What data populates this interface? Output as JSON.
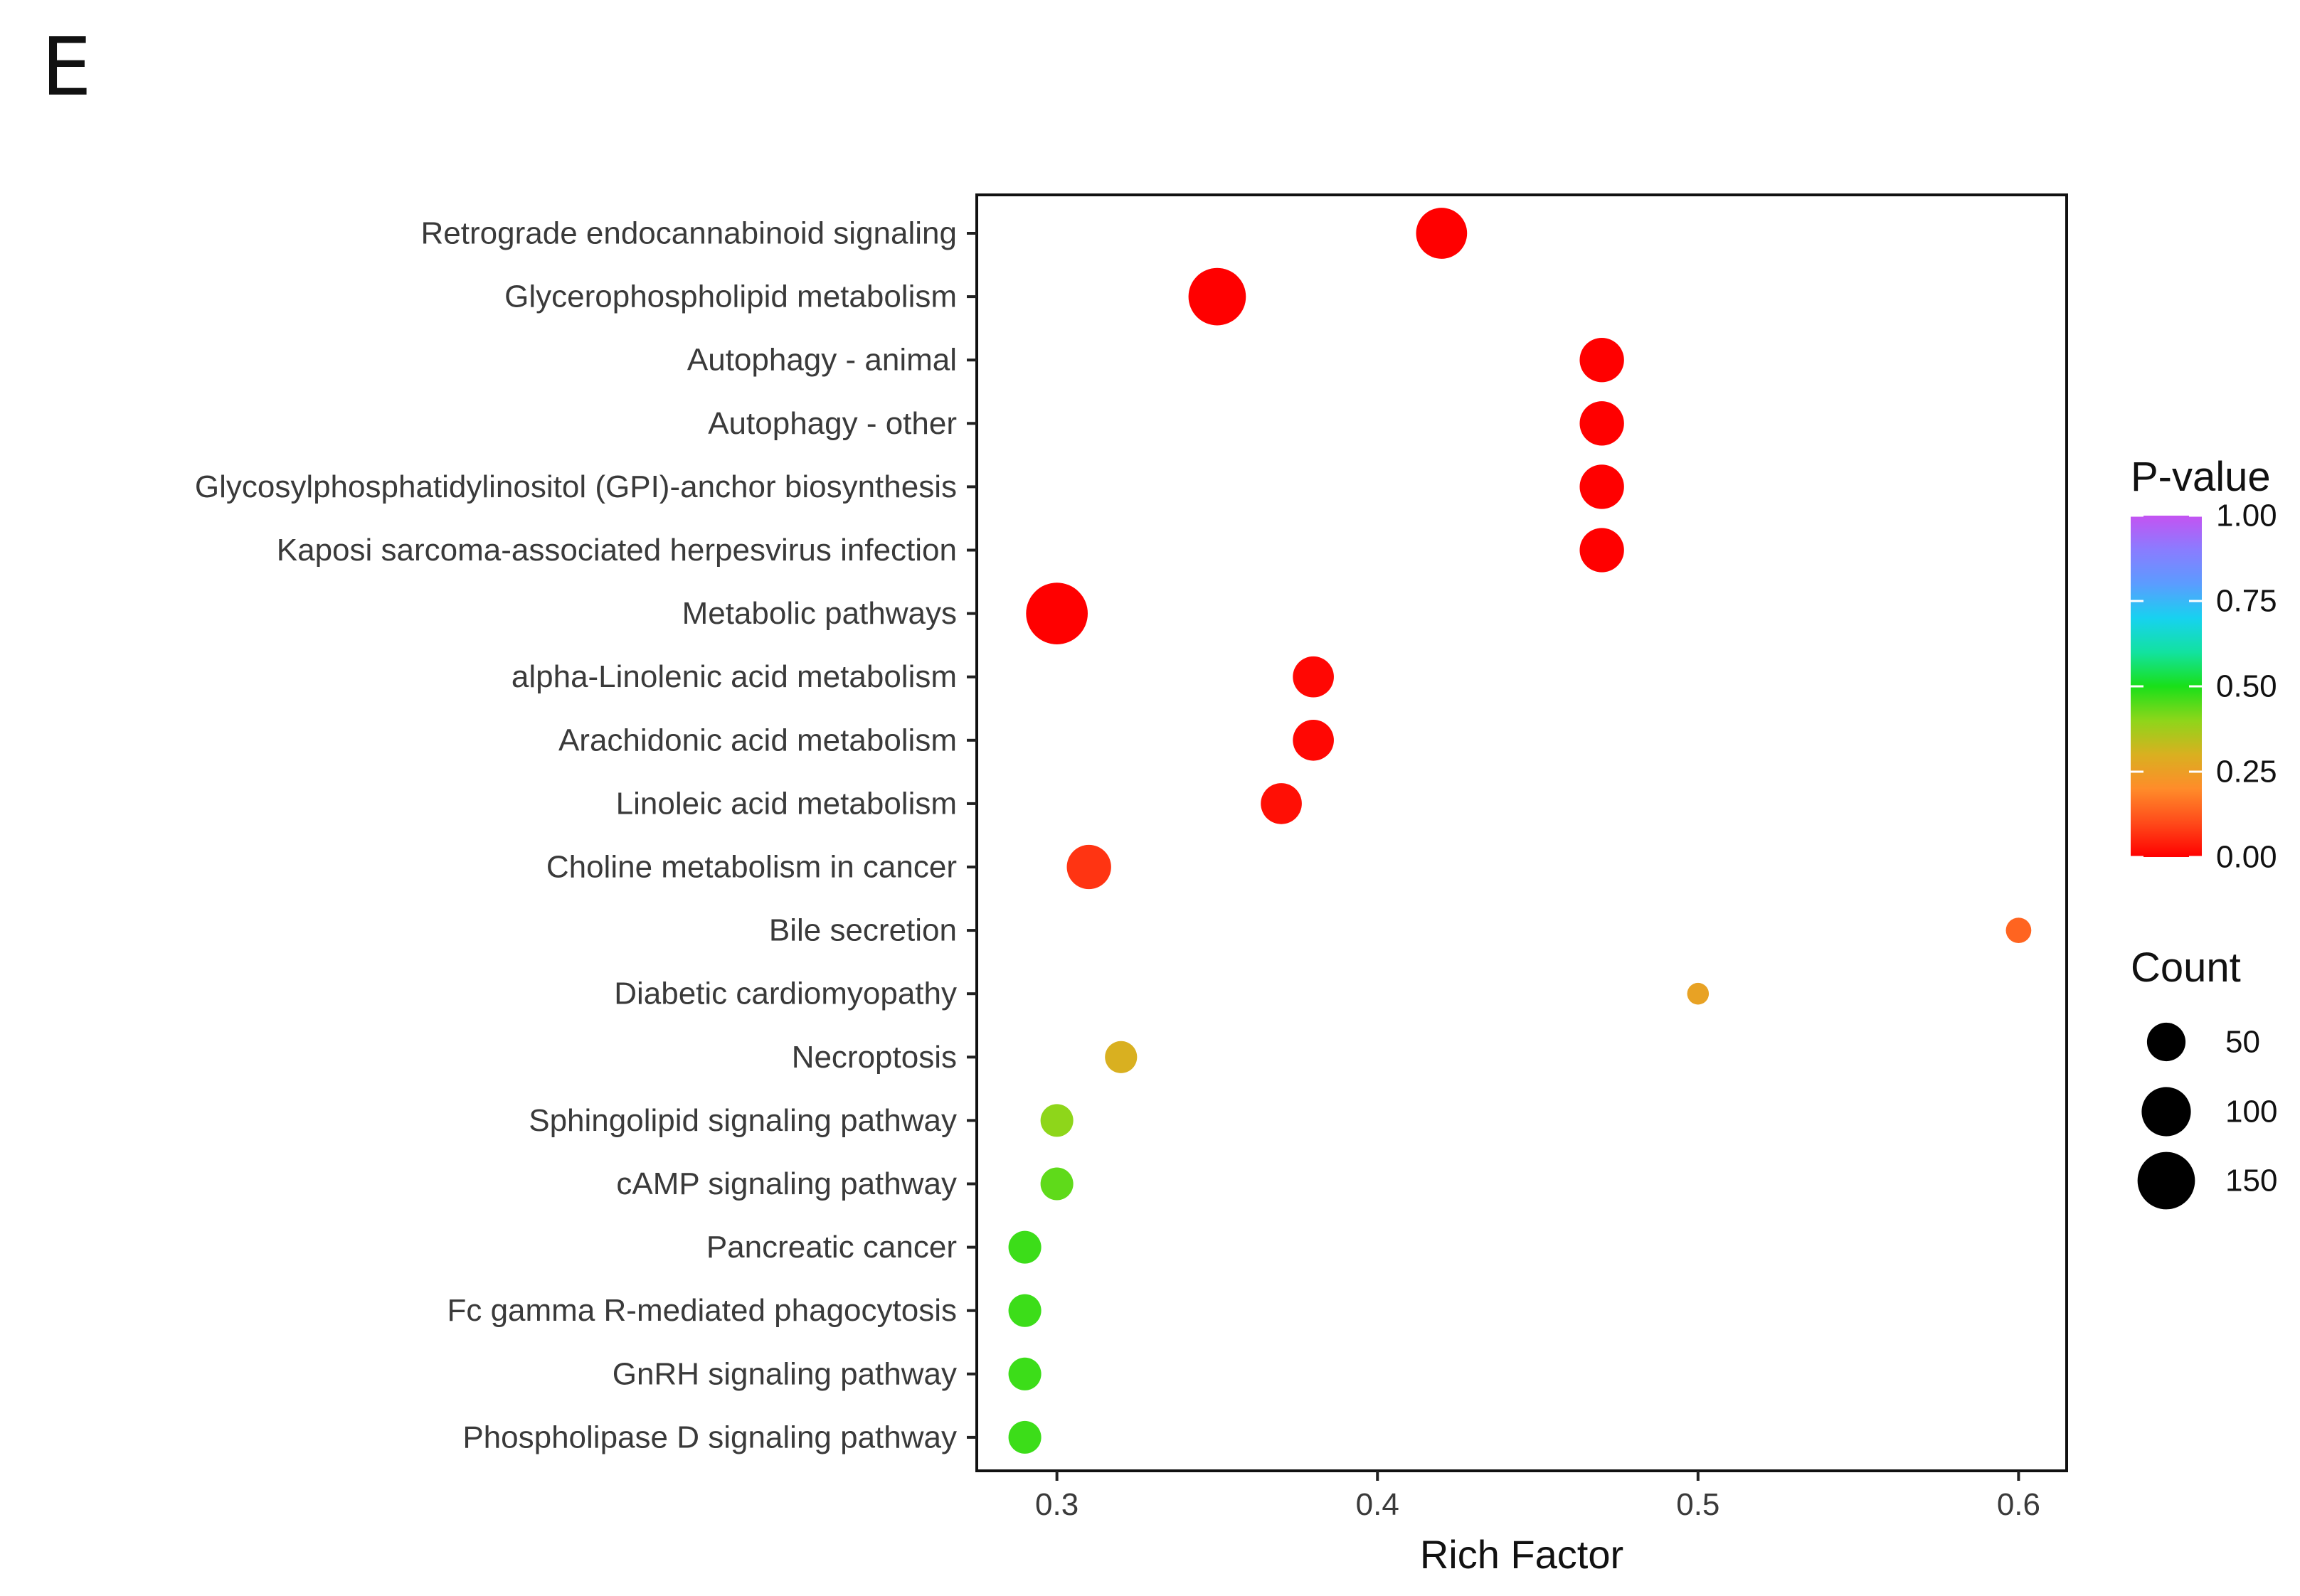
{
  "panel_label": "E",
  "chart_data": {
    "type": "scatter",
    "title": "",
    "xlabel": "Rich Factor",
    "ylabel": "",
    "xlim": [
      0.275,
      0.615
    ],
    "xticks": [
      0.3,
      0.4,
      0.5,
      0.6
    ],
    "xtick_labels": [
      "0.3",
      "0.4",
      "0.5",
      "0.6"
    ],
    "categories": [
      "Retrograde endocannabinoid signaling",
      "Glycerophospholipid metabolism",
      "Autophagy - animal",
      "Autophagy - other",
      "Glycosylphosphatidylinositol (GPI)-anchor biosynthesis",
      "Kaposi sarcoma-associated herpesvirus infection",
      "Metabolic pathways",
      "alpha-Linolenic acid metabolism",
      "Arachidonic acid metabolism",
      "Linoleic acid metabolism",
      "Choline metabolism in cancer",
      "Bile secretion",
      "Diabetic cardiomyopathy",
      "Necroptosis",
      "Sphingolipid signaling pathway",
      "cAMP signaling pathway",
      "Pancreatic cancer",
      "Fc gamma R-mediated phagocytosis",
      "GnRH signaling pathway",
      "Phospholipase D signaling pathway"
    ],
    "points": [
      {
        "pathway": "Retrograde endocannabinoid signaling",
        "rich_factor": 0.42,
        "p_value": 0.0,
        "count": 110
      },
      {
        "pathway": "Glycerophospholipid metabolism",
        "rich_factor": 0.35,
        "p_value": 0.0,
        "count": 150
      },
      {
        "pathway": "Autophagy - animal",
        "rich_factor": 0.47,
        "p_value": 0.0,
        "count": 75
      },
      {
        "pathway": "Autophagy - other",
        "rich_factor": 0.47,
        "p_value": 0.0,
        "count": 75
      },
      {
        "pathway": "Glycosylphosphatidylinositol (GPI)-anchor biosynthesis",
        "rich_factor": 0.47,
        "p_value": 0.0,
        "count": 75
      },
      {
        "pathway": "Kaposi sarcoma-associated herpesvirus infection",
        "rich_factor": 0.47,
        "p_value": 0.0,
        "count": 75
      },
      {
        "pathway": "Metabolic pathways",
        "rich_factor": 0.3,
        "p_value": 0.0,
        "count": 180
      },
      {
        "pathway": "alpha-Linolenic acid metabolism",
        "rich_factor": 0.38,
        "p_value": 0.01,
        "count": 60
      },
      {
        "pathway": "Arachidonic acid metabolism",
        "rich_factor": 0.38,
        "p_value": 0.01,
        "count": 60
      },
      {
        "pathway": "Linoleic acid metabolism",
        "rich_factor": 0.37,
        "p_value": 0.02,
        "count": 60
      },
      {
        "pathway": "Choline metabolism in cancer",
        "rich_factor": 0.31,
        "p_value": 0.07,
        "count": 75
      },
      {
        "pathway": "Bile secretion",
        "rich_factor": 0.6,
        "p_value": 0.14,
        "count": 12
      },
      {
        "pathway": "Diabetic cardiomyopathy",
        "rich_factor": 0.5,
        "p_value": 0.26,
        "count": 6
      },
      {
        "pathway": "Necroptosis",
        "rich_factor": 0.32,
        "p_value": 0.3,
        "count": 28
      },
      {
        "pathway": "Sphingolipid signaling pathway",
        "rich_factor": 0.3,
        "p_value": 0.4,
        "count": 30
      },
      {
        "pathway": "cAMP signaling pathway",
        "rich_factor": 0.3,
        "p_value": 0.44,
        "count": 30
      },
      {
        "pathway": "Pancreatic cancer",
        "rich_factor": 0.29,
        "p_value": 0.47,
        "count": 30
      },
      {
        "pathway": "Fc gamma R-mediated phagocytosis",
        "rich_factor": 0.29,
        "p_value": 0.47,
        "count": 30
      },
      {
        "pathway": "GnRH signaling pathway",
        "rich_factor": 0.29,
        "p_value": 0.47,
        "count": 30
      },
      {
        "pathway": "Phospholipase D signaling pathway",
        "rich_factor": 0.29,
        "p_value": 0.47,
        "count": 30
      }
    ],
    "color_legend": {
      "title": "P-value",
      "range": [
        0,
        1
      ],
      "ticks": [
        1.0,
        0.75,
        0.5,
        0.25,
        0.0
      ],
      "tick_labels": [
        "1.00",
        "0.75",
        "0.50",
        "0.25",
        "0.00"
      ],
      "colors": [
        "#ff0000",
        "#ff4a1a",
        "#ff8c2a",
        "#d9b020",
        "#8ed61a",
        "#19e019",
        "#12e2a0",
        "#17d2f0",
        "#5b9cff",
        "#8a7cff",
        "#c453f2"
      ]
    },
    "size_legend": {
      "title": "Count",
      "values": [
        50,
        100,
        150
      ],
      "labels": [
        "50",
        "100",
        "150"
      ]
    },
    "legend_position": "right"
  }
}
